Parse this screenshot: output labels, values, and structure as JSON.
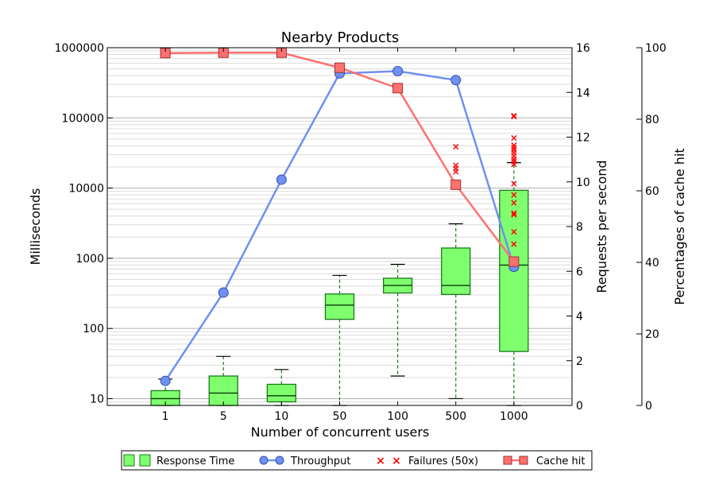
{
  "chart_data": {
    "type": "box_line_combo",
    "title": "Nearby Products",
    "xlabel": "Number of concurrent users",
    "categories": [
      "1",
      "5",
      "10",
      "50",
      "100",
      "500",
      "1000"
    ],
    "y_left": {
      "label": "Milliseconds",
      "scale": "log",
      "ylim": [
        8,
        1000000
      ],
      "ticks": [
        10,
        100,
        1000,
        10000,
        100000,
        1000000
      ],
      "tick_labels": [
        "10",
        "100",
        "1000",
        "10000",
        "100000",
        "1000000"
      ]
    },
    "y_right1": {
      "label": "Requests per second",
      "ylim": [
        0,
        16
      ],
      "ticks": [
        0,
        2,
        4,
        6,
        8,
        10,
        12,
        14,
        16
      ],
      "tick_labels": [
        "0",
        "2",
        "4",
        "6",
        "8",
        "10",
        "12",
        "14",
        "16"
      ]
    },
    "y_right2": {
      "label": "Percentages of cache hit",
      "ylim": [
        0,
        100
      ],
      "ticks": [
        0,
        20,
        40,
        60,
        80,
        100
      ],
      "tick_labels": [
        "0",
        "20",
        "40",
        "60",
        "80",
        "100"
      ]
    },
    "grid": true,
    "legend": {
      "placement": "bottom-center",
      "entries": [
        "Response Time",
        "Throughput",
        "Failures (50x)",
        "Cache hit"
      ]
    },
    "series": [
      {
        "name": "Response Time",
        "kind": "box",
        "axis": "y_left",
        "color": "#7fff6e",
        "edge_color": "#1a7a1a",
        "boxes": [
          {
            "whisker_low": 8,
            "q1": 8,
            "median": 10,
            "q3": 13,
            "whisker_high": 19
          },
          {
            "whisker_low": 8,
            "q1": 8,
            "median": 12,
            "q3": 21,
            "whisker_high": 40
          },
          {
            "whisker_low": 8,
            "q1": 9,
            "median": 11,
            "q3": 16,
            "whisker_high": 26
          },
          {
            "whisker_low": 8,
            "q1": 135,
            "median": 215,
            "q3": 310,
            "whisker_high": 570
          },
          {
            "whisker_low": 21,
            "q1": 320,
            "median": 410,
            "q3": 520,
            "whisker_high": 820
          },
          {
            "whisker_low": 10,
            "q1": 305,
            "median": 410,
            "q3": 1400,
            "whisker_high": 3100
          },
          {
            "whisker_low": 8,
            "q1": 47,
            "median": 800,
            "q3": 9300,
            "whisker_high": 23000
          }
        ]
      },
      {
        "name": "Throughput",
        "kind": "line",
        "axis": "y_right1",
        "color": "#7090f0",
        "values": [
          1.1,
          5.05,
          10.1,
          14.85,
          14.95,
          14.55,
          6.2
        ]
      },
      {
        "name": "Failures (50x)",
        "kind": "scatter",
        "axis": "y_left",
        "color": "#ff0000",
        "points": [
          {
            "category": "500",
            "values": [
              39000,
              21000,
              19000,
              17000
            ]
          },
          {
            "category": "1000",
            "values": [
              108000,
              105000,
              52000,
              41000,
              38000,
              35000,
              32000,
              29000,
              26000,
              24000,
              22000,
              11500,
              8000,
              6200,
              4400,
              4200,
              2400,
              1600
            ]
          }
        ]
      },
      {
        "name": "Cache hit",
        "kind": "line",
        "axis": "y_right2",
        "color": "#ff7070",
        "values": [
          98.5,
          98.6,
          98.6,
          94.4,
          88.7,
          61.7,
          40.2
        ]
      }
    ]
  }
}
